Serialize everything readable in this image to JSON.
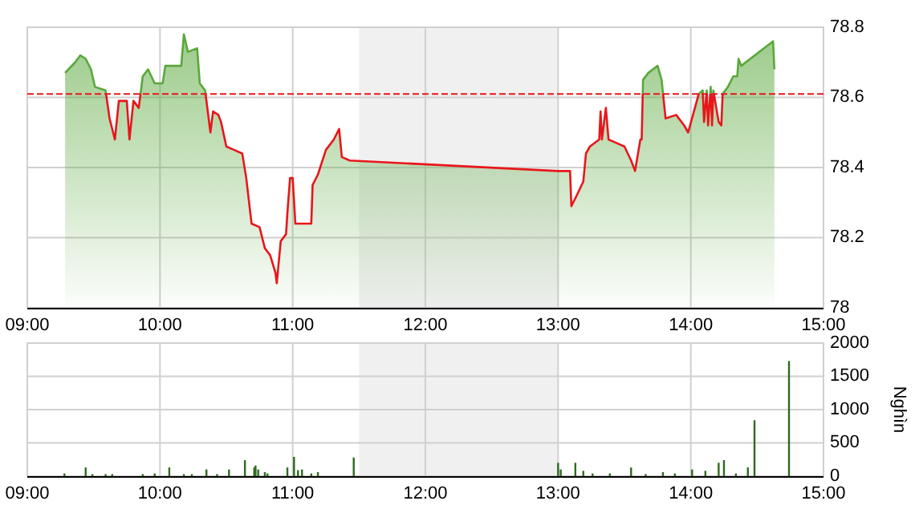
{
  "chart_data": [
    {
      "type": "area",
      "xlim": [
        9,
        15
      ],
      "ylim": [
        78,
        78.8
      ],
      "xticks": [
        {
          "value": 9,
          "label": "09:00"
        },
        {
          "value": 10,
          "label": "10:00"
        },
        {
          "value": 11,
          "label": "11:00"
        },
        {
          "value": 12,
          "label": "12:00"
        },
        {
          "value": 13,
          "label": "13:00"
        },
        {
          "value": 14,
          "label": "14:00"
        },
        {
          "value": 15,
          "label": "15:00"
        }
      ],
      "yticks": [
        78,
        78.2,
        78.4,
        78.6,
        78.8
      ],
      "grid": true,
      "bands": [
        {
          "axis": "x",
          "from": 11.5,
          "to": 13,
          "color": "#f0f0f0"
        }
      ],
      "ref_lines": [
        {
          "axis": "y",
          "value": 78.61,
          "color": "#e8161b",
          "line_style": "dashed"
        }
      ],
      "series": [
        {
          "color": "#5aa83c",
          "x": [
            9.285,
            9.36,
            9.4,
            9.44,
            9.48,
            9.51,
            9.59,
            9.62,
            9.66,
            9.69,
            9.75,
            9.77,
            9.8,
            9.84,
            9.87,
            9.91,
            9.96,
            10.02,
            10.04,
            10.16,
            10.18,
            10.21,
            10.28,
            10.3,
            10.34,
            10.36,
            10.38,
            10.4,
            10.44,
            10.46,
            10.5,
            10.56,
            10.62,
            10.65,
            10.69,
            10.75,
            10.79,
            10.83,
            10.87,
            10.88,
            10.91,
            10.95,
            10.96,
            10.98,
            11.0,
            11.02,
            11.14,
            11.15,
            11.19,
            11.25,
            11.31,
            11.35,
            11.37,
            11.43,
            13.0,
            13.09,
            13.1,
            13.14,
            13.19,
            13.21,
            13.24,
            13.31,
            13.32,
            13.33,
            13.36,
            13.38,
            13.44,
            13.5,
            13.55,
            13.58,
            13.62,
            13.63,
            13.64,
            13.68,
            13.75,
            13.78,
            13.81,
            13.89,
            13.95,
            13.98,
            14.06,
            14.09,
            14.1,
            14.12,
            14.13,
            14.15,
            14.16,
            14.17,
            14.21,
            14.23,
            14.24,
            14.28,
            14.32,
            14.35,
            14.36,
            14.38,
            14.62,
            14.63
          ],
          "values": [
            78.67,
            78.7,
            78.72,
            78.71,
            78.68,
            78.63,
            78.62,
            78.54,
            78.48,
            78.59,
            78.59,
            78.48,
            78.59,
            78.57,
            78.66,
            78.68,
            78.64,
            78.64,
            78.69,
            78.69,
            78.78,
            78.73,
            78.74,
            78.64,
            78.62,
            78.56,
            78.5,
            78.56,
            78.55,
            78.53,
            78.46,
            78.45,
            78.44,
            78.37,
            78.24,
            78.23,
            78.17,
            78.15,
            78.1,
            78.07,
            78.19,
            78.21,
            78.27,
            78.37,
            78.37,
            78.24,
            78.24,
            78.35,
            78.38,
            78.45,
            78.48,
            78.51,
            78.43,
            78.42,
            78.39,
            78.39,
            78.29,
            78.32,
            78.36,
            78.44,
            78.46,
            78.48,
            78.56,
            78.48,
            78.57,
            78.48,
            78.47,
            78.46,
            78.42,
            78.39,
            78.48,
            78.48,
            78.65,
            78.67,
            78.69,
            78.65,
            78.54,
            78.55,
            78.52,
            78.5,
            78.61,
            78.62,
            78.53,
            78.62,
            78.52,
            78.63,
            78.52,
            78.62,
            78.53,
            78.52,
            78.61,
            78.63,
            78.66,
            78.66,
            78.71,
            78.69,
            78.76,
            78.68
          ]
        }
      ]
    },
    {
      "type": "bar",
      "xlim": [
        9,
        15
      ],
      "ylim": [
        0,
        2000
      ],
      "ylabel": "Nghìn",
      "xticks": [
        {
          "value": 9,
          "label": "09:00"
        },
        {
          "value": 10,
          "label": "10:00"
        },
        {
          "value": 11,
          "label": "11:00"
        },
        {
          "value": 12,
          "label": "12:00"
        },
        {
          "value": 13,
          "label": "13:00"
        },
        {
          "value": 14,
          "label": "14:00"
        },
        {
          "value": 15,
          "label": "15:00"
        }
      ],
      "yticks": [
        0,
        500,
        1000,
        1500,
        2000
      ],
      "grid": true,
      "bands": [
        {
          "axis": "x",
          "from": 11.5,
          "to": 13,
          "color": "#f0f0f0"
        }
      ],
      "series": [
        {
          "color": "#2e6b1e",
          "x": [
            9.28,
            9.44,
            9.49,
            9.59,
            9.64,
            9.87,
            9.96,
            10.07,
            10.18,
            10.24,
            10.35,
            10.43,
            10.52,
            10.64,
            10.71,
            10.72,
            10.74,
            10.79,
            10.81,
            10.96,
            11.01,
            11.04,
            11.07,
            11.14,
            11.19,
            11.46,
            13.0,
            13.02,
            13.13,
            13.19,
            13.26,
            13.39,
            13.55,
            13.66,
            13.79,
            13.88,
            14.01,
            14.11,
            14.21,
            14.25,
            14.34,
            14.43,
            14.48,
            14.74
          ],
          "values": [
            40,
            130,
            30,
            30,
            30,
            30,
            40,
            130,
            30,
            30,
            100,
            30,
            100,
            240,
            130,
            160,
            100,
            60,
            40,
            130,
            290,
            90,
            100,
            40,
            60,
            280,
            200,
            100,
            200,
            80,
            40,
            40,
            130,
            30,
            60,
            40,
            100,
            80,
            200,
            240,
            40,
            130,
            840,
            1730
          ]
        }
      ]
    }
  ]
}
